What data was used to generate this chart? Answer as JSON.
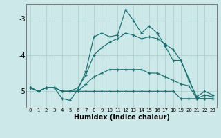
{
  "xlabel": "Humidex (Indice chaleur)",
  "background_color": "#cce8e8",
  "grid_color": "#aacccc",
  "line_color": "#1a7070",
  "xlim": [
    -0.5,
    23.5
  ],
  "ylim": [
    -5.45,
    -2.6
  ],
  "xticks": [
    0,
    1,
    2,
    3,
    4,
    5,
    6,
    7,
    8,
    9,
    10,
    11,
    12,
    13,
    14,
    15,
    16,
    17,
    18,
    19,
    20,
    21,
    22,
    23
  ],
  "yticks": [
    -5,
    -4,
    -3
  ],
  "line1_x": [
    0,
    1,
    2,
    3,
    4,
    5,
    6,
    7,
    8,
    9,
    10,
    11,
    12,
    13,
    14,
    15,
    16,
    17,
    18,
    19,
    20,
    21,
    22,
    23
  ],
  "line1_y": [
    -4.9,
    -5.0,
    -4.9,
    -4.9,
    -5.0,
    -5.0,
    -5.0,
    -5.0,
    -5.0,
    -5.0,
    -5.0,
    -5.0,
    -5.0,
    -5.0,
    -5.0,
    -5.0,
    -5.0,
    -5.0,
    -5.0,
    -5.2,
    -5.2,
    -5.2,
    -5.2,
    -5.2
  ],
  "line2_x": [
    0,
    1,
    2,
    3,
    4,
    5,
    6,
    7,
    8,
    9,
    10,
    11,
    12,
    13,
    14,
    15,
    16,
    17,
    18,
    19,
    20,
    21,
    22,
    23
  ],
  "line2_y": [
    -4.9,
    -5.0,
    -4.9,
    -4.9,
    -5.0,
    -5.0,
    -5.0,
    -4.8,
    -4.6,
    -4.5,
    -4.4,
    -4.4,
    -4.4,
    -4.4,
    -4.4,
    -4.5,
    -4.5,
    -4.6,
    -4.7,
    -4.8,
    -4.85,
    -5.2,
    -5.2,
    -5.2
  ],
  "line3_x": [
    0,
    1,
    2,
    3,
    4,
    5,
    6,
    7,
    8,
    9,
    10,
    11,
    12,
    13,
    14,
    15,
    16,
    17,
    18,
    19,
    20,
    21,
    22,
    23
  ],
  "line3_y": [
    -4.9,
    -5.0,
    -4.9,
    -4.9,
    -5.0,
    -5.0,
    -4.9,
    -4.55,
    -4.0,
    -3.8,
    -3.65,
    -3.55,
    -3.4,
    -3.45,
    -3.55,
    -3.5,
    -3.55,
    -3.7,
    -3.85,
    -4.15,
    -4.65,
    -5.2,
    -5.1,
    -5.15
  ],
  "line4_x": [
    0,
    1,
    2,
    3,
    4,
    5,
    6,
    7,
    8,
    9,
    10,
    11,
    12,
    13,
    14,
    15,
    16,
    17,
    18,
    19,
    20,
    21,
    22,
    23
  ],
  "line4_y": [
    -4.9,
    -5.0,
    -4.9,
    -4.9,
    -5.2,
    -5.25,
    -4.95,
    -4.45,
    -3.5,
    -3.4,
    -3.5,
    -3.45,
    -2.75,
    -3.05,
    -3.4,
    -3.2,
    -3.4,
    -3.75,
    -4.15,
    -4.15,
    -4.7,
    -5.15,
    -5.0,
    -5.1
  ]
}
